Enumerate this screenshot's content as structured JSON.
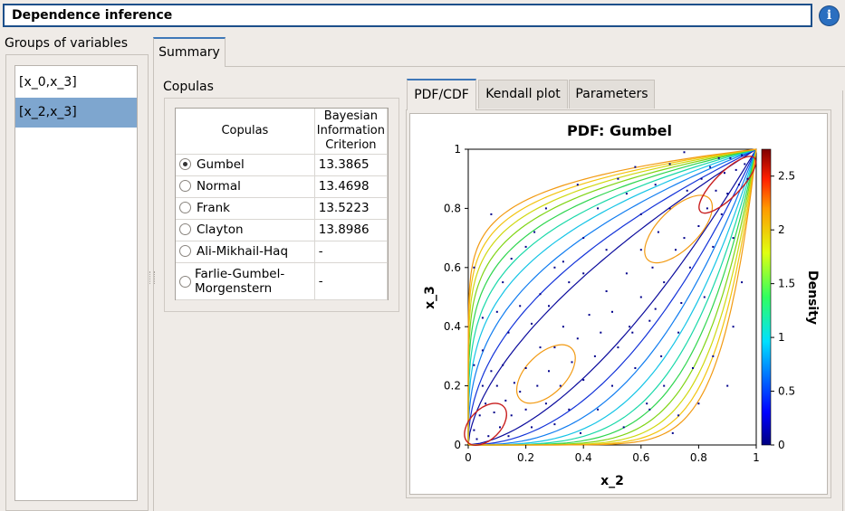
{
  "window": {
    "title": "Dependence inference",
    "info_icon": "i"
  },
  "groups": {
    "label": "Groups of variables",
    "items": [
      {
        "label": "[x_0,x_3]",
        "selected": false
      },
      {
        "label": "[x_2,x_3]",
        "selected": true
      }
    ]
  },
  "tabs": {
    "summary": "Summary"
  },
  "copulas": {
    "label": "Copulas",
    "columns": [
      "Copulas",
      "Bayesian Information Criterion"
    ],
    "rows": [
      {
        "name": "Gumbel",
        "bic": "13.3865",
        "selected": true
      },
      {
        "name": "Normal",
        "bic": "13.4698",
        "selected": false
      },
      {
        "name": "Frank",
        "bic": "13.5223",
        "selected": false
      },
      {
        "name": "Clayton",
        "bic": "13.8986",
        "selected": false
      },
      {
        "name": "Ali-Mikhail-Haq",
        "bic": "-",
        "selected": false
      },
      {
        "name": "Farlie-Gumbel-Morgenstern",
        "bic": "-",
        "selected": false
      }
    ]
  },
  "plot_tabs": {
    "pdf": "PDF/CDF",
    "kendall": "Kendall plot",
    "params": "Parameters"
  },
  "chart_data": {
    "type": "contour",
    "title": "PDF: Gumbel",
    "xlabel": "x_2",
    "ylabel": "x_3",
    "xlim": [
      0,
      1
    ],
    "ylim": [
      0,
      1
    ],
    "xticks": [
      "0",
      "0.2",
      "0.4",
      "0.6",
      "0.8",
      "1"
    ],
    "yticks": [
      "0",
      "0.2",
      "0.4",
      "0.6",
      "0.8",
      "1"
    ],
    "colorbar": {
      "label": "Density",
      "range": [
        0,
        2.75
      ],
      "ticks": [
        "0",
        "0.5",
        "1",
        "1.5",
        "2",
        "2.5"
      ]
    },
    "grid": false,
    "contour_levels": [
      0.15,
      0.35,
      0.55,
      0.75,
      0.95,
      1.15,
      1.35,
      1.55,
      1.75,
      2.05,
      2.6
    ],
    "contour_colors": [
      "#0a0a9c",
      "#1232d8",
      "#0f7cf0",
      "#14c4e6",
      "#18d8a8",
      "#2ed54e",
      "#7fd414",
      "#cfd80f",
      "#f3c40f",
      "#f29a12",
      "#c81e1e"
    ],
    "sample_points": [
      [
        0.02,
        0.05
      ],
      [
        0.04,
        0.1
      ],
      [
        0.03,
        0.02
      ],
      [
        0.06,
        0.14
      ],
      [
        0.07,
        0.03
      ],
      [
        0.09,
        0.11
      ],
      [
        0.05,
        0.2
      ],
      [
        0.11,
        0.06
      ],
      [
        0.13,
        0.15
      ],
      [
        0.14,
        0.03
      ],
      [
        0.02,
        0.27
      ],
      [
        0.05,
        0.32
      ],
      [
        0.08,
        0.25
      ],
      [
        0.1,
        0.2
      ],
      [
        0.12,
        0.27
      ],
      [
        0.15,
        0.1
      ],
      [
        0.16,
        0.21
      ],
      [
        0.18,
        0.18
      ],
      [
        0.2,
        0.12
      ],
      [
        0.2,
        0.26
      ],
      [
        0.22,
        0.06
      ],
      [
        0.24,
        0.2
      ],
      [
        0.25,
        0.33
      ],
      [
        0.27,
        0.14
      ],
      [
        0.28,
        0.25
      ],
      [
        0.3,
        0.07
      ],
      [
        0.3,
        0.33
      ],
      [
        0.32,
        0.2
      ],
      [
        0.33,
        0.4
      ],
      [
        0.35,
        0.12
      ],
      [
        0.36,
        0.28
      ],
      [
        0.38,
        0.36
      ],
      [
        0.39,
        0.04
      ],
      [
        0.4,
        0.22
      ],
      [
        0.42,
        0.44
      ],
      [
        0.44,
        0.3
      ],
      [
        0.45,
        0.12
      ],
      [
        0.46,
        0.38
      ],
      [
        0.48,
        0.52
      ],
      [
        0.5,
        0.2
      ],
      [
        0.5,
        0.45
      ],
      [
        0.52,
        0.33
      ],
      [
        0.54,
        0.06
      ],
      [
        0.55,
        0.58
      ],
      [
        0.56,
        0.4
      ],
      [
        0.58,
        0.26
      ],
      [
        0.6,
        0.5
      ],
      [
        0.6,
        0.66
      ],
      [
        0.62,
        0.14
      ],
      [
        0.63,
        0.42
      ],
      [
        0.64,
        0.6
      ],
      [
        0.66,
        0.72
      ],
      [
        0.67,
        0.3
      ],
      [
        0.68,
        0.55
      ],
      [
        0.7,
        0.8
      ],
      [
        0.71,
        0.04
      ],
      [
        0.72,
        0.66
      ],
      [
        0.74,
        0.48
      ],
      [
        0.75,
        0.7
      ],
      [
        0.76,
        0.86
      ],
      [
        0.77,
        0.6
      ],
      [
        0.78,
        0.26
      ],
      [
        0.8,
        0.74
      ],
      [
        0.81,
        0.9
      ],
      [
        0.82,
        0.5
      ],
      [
        0.83,
        0.8
      ],
      [
        0.84,
        0.94
      ],
      [
        0.85,
        0.67
      ],
      [
        0.86,
        0.86
      ],
      [
        0.87,
        0.97
      ],
      [
        0.88,
        0.78
      ],
      [
        0.89,
        0.92
      ],
      [
        0.9,
        0.85
      ],
      [
        0.91,
        0.97
      ],
      [
        0.92,
        0.7
      ],
      [
        0.93,
        0.93
      ],
      [
        0.94,
        0.88
      ],
      [
        0.95,
        0.98
      ],
      [
        0.96,
        0.95
      ],
      [
        0.97,
        0.9
      ],
      [
        0.1,
        0.45
      ],
      [
        0.12,
        0.55
      ],
      [
        0.14,
        0.38
      ],
      [
        0.2,
        0.67
      ],
      [
        0.25,
        0.51
      ],
      [
        0.3,
        0.6
      ],
      [
        0.05,
        0.43
      ],
      [
        0.08,
        0.78
      ],
      [
        0.35,
        0.55
      ],
      [
        0.4,
        0.7
      ],
      [
        0.45,
        0.8
      ],
      [
        0.22,
        0.41
      ],
      [
        0.18,
        0.47
      ],
      [
        0.28,
        0.47
      ],
      [
        0.55,
        0.85
      ],
      [
        0.6,
        0.78
      ],
      [
        0.65,
        0.88
      ],
      [
        0.38,
        0.88
      ],
      [
        0.02,
        0.6
      ],
      [
        0.48,
        0.66
      ],
      [
        0.52,
        0.9
      ],
      [
        0.58,
        0.94
      ],
      [
        0.7,
        0.95
      ],
      [
        0.75,
        0.99
      ],
      [
        0.63,
        0.12
      ],
      [
        0.68,
        0.2
      ],
      [
        0.73,
        0.1
      ],
      [
        0.8,
        0.14
      ],
      [
        0.85,
        0.3
      ],
      [
        0.9,
        0.2
      ],
      [
        0.92,
        0.4
      ],
      [
        0.95,
        0.55
      ],
      [
        0.4,
        0.58
      ],
      [
        0.33,
        0.62
      ],
      [
        0.57,
        0.38
      ],
      [
        0.65,
        0.46
      ],
      [
        0.73,
        0.38
      ],
      [
        0.23,
        0.72
      ],
      [
        0.15,
        0.63
      ],
      [
        0.27,
        0.8
      ]
    ]
  }
}
